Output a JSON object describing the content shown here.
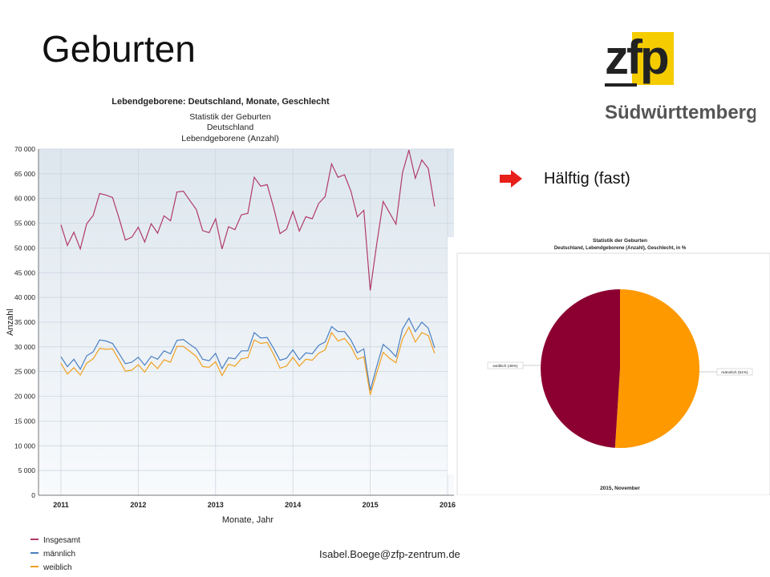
{
  "slide": {
    "title": "Geburten",
    "bullet_text": "Hälftig (fast)",
    "footer": "Isabel.Boege@zfp-zentrum.de",
    "icon": "arrow-right-icon"
  },
  "logo": {
    "letters": "zfp",
    "subtitle": "Südwürttemberg",
    "colors": {
      "yellow": "#f5cc00",
      "text": "#222222",
      "subtitle": "#555555"
    }
  },
  "colors": {
    "insgesamt": "#b03a6a",
    "maennlich": "#4a7fc1",
    "weiblich": "#f0a020",
    "pie_weiblich": "#8b0030",
    "pie_maennlich": "#ff9900",
    "bullet": "#e8201a"
  },
  "chart_data": [
    {
      "type": "line",
      "title": "Lebendgeborene: Deutschland, Monate, Geschlecht",
      "subtitle_lines": [
        "Statistik der Geburten",
        "Deutschland",
        "Lebendgeborene (Anzahl)"
      ],
      "xlabel": "Monate, Jahr",
      "ylabel": "Anzahl",
      "ylim": [
        0,
        70000
      ],
      "yticks": [
        "0",
        "5 000",
        "10 000",
        "15 000",
        "20 000",
        "25 000",
        "30 000",
        "35 000",
        "40 000",
        "45 000",
        "50 000",
        "55 000",
        "60 000",
        "65 000",
        "70 000"
      ],
      "xlim": [
        2011,
        2016
      ],
      "xticks": [
        "2011",
        "2012",
        "2013",
        "2014",
        "2015",
        "2016"
      ],
      "grid": true,
      "legend_position": "bottom-left",
      "x_start": "2011-01",
      "x_step": "month",
      "series": [
        {
          "name": "Insgesamt",
          "values": [
            54700,
            50500,
            53200,
            49800,
            54900,
            56600,
            61000,
            60700,
            60200,
            56100,
            51600,
            52200,
            54200,
            51200,
            54900,
            53000,
            56500,
            55500,
            61300,
            61500,
            59600,
            57800,
            53500,
            53100,
            55900,
            49800,
            54300,
            53700,
            56700,
            57000,
            64300,
            62500,
            62800,
            58200,
            52900,
            53800,
            57400,
            53400,
            56300,
            55900,
            59000,
            60400,
            67000,
            64300,
            64800,
            61500,
            56300,
            57600,
            41400,
            50700,
            59400,
            57100,
            54800,
            65200,
            69800,
            64100,
            67800,
            66100,
            58400
          ]
        },
        {
          "name": "männlich",
          "values": [
            28000,
            26000,
            27500,
            25500,
            28200,
            29000,
            31400,
            31200,
            30700,
            28700,
            26600,
            26900,
            27900,
            26300,
            28100,
            27500,
            29200,
            28600,
            31300,
            31500,
            30500,
            29600,
            27500,
            27200,
            28700,
            25600,
            27800,
            27600,
            29200,
            29200,
            32900,
            31800,
            31900,
            29700,
            27300,
            27700,
            29400,
            27400,
            28800,
            28600,
            30300,
            31000,
            34100,
            33100,
            33100,
            31400,
            28800,
            29600,
            21200,
            26000,
            30500,
            29400,
            28000,
            33600,
            35800,
            33100,
            35000,
            33800,
            29800
          ]
        },
        {
          "name": "weiblich",
          "values": [
            26700,
            24500,
            25800,
            24300,
            26700,
            27600,
            29700,
            29500,
            29600,
            27400,
            25100,
            25300,
            26400,
            24900,
            26900,
            25600,
            27400,
            26900,
            30100,
            30100,
            29100,
            28100,
            26000,
            25900,
            27000,
            24200,
            26500,
            26100,
            27600,
            27800,
            31400,
            30700,
            30900,
            28500,
            25700,
            26100,
            27900,
            26100,
            27500,
            27300,
            28700,
            29400,
            32900,
            31200,
            31700,
            30100,
            27500,
            28000,
            20300,
            24700,
            28900,
            27700,
            26800,
            31600,
            34000,
            31000,
            32900,
            32300,
            28700
          ]
        }
      ]
    },
    {
      "type": "pie",
      "title": "Statistik der Geburten",
      "subtitle": "Deutschland, Lebendgeborene (Anzahl), Geschlecht, in %",
      "footer_label": "2015, November",
      "slices": [
        {
          "name": "männlich",
          "value": 51,
          "label": "männlich (51%)"
        },
        {
          "name": "weiblich",
          "value": 49,
          "label": "weiblich (49%)"
        }
      ]
    }
  ]
}
